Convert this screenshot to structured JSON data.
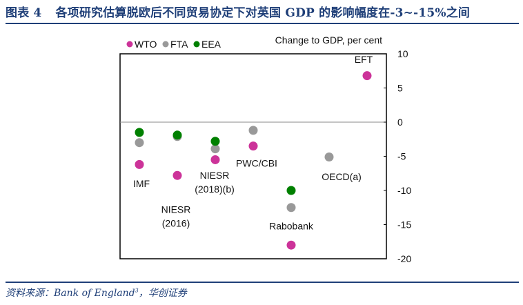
{
  "figure": {
    "label": "图表",
    "number": "4",
    "title": "各项研究估算脱欧后不同贸易协定下对英国 GDP 的影响幅度在-3~-15%之间"
  },
  "source": {
    "prefix": "资料来源：",
    "text": "Bank of England",
    "footnote": "3",
    "suffix": "，华创证券"
  },
  "chart_data": {
    "type": "scatter",
    "title": "",
    "ylabel": "Change to GDP, per cent",
    "xlabel": "",
    "ylim": [
      -20,
      10
    ],
    "yticks": [
      10,
      5,
      0,
      -5,
      -10,
      -15,
      -20
    ],
    "grid": false,
    "reference_line": 0,
    "legend_position": "top-left",
    "colors": {
      "WTO": "#cc3399",
      "FTA": "#999999",
      "EEA": "#008000"
    },
    "series": [
      {
        "name": "WTO",
        "points": [
          {
            "study": "IMF",
            "value": -6.2
          },
          {
            "study": "NIESR (2016)",
            "value": -7.8
          },
          {
            "study": "NIESR (2018)(b)",
            "value": -5.5
          },
          {
            "study": "PWC/CBI",
            "value": -3.5
          },
          {
            "study": "Rabobank",
            "value": -18.0
          },
          {
            "study": "EFT",
            "value": 6.8
          }
        ]
      },
      {
        "name": "FTA",
        "points": [
          {
            "study": "IMF",
            "value": -3.0
          },
          {
            "study": "NIESR (2016)",
            "value": -2.1
          },
          {
            "study": "NIESR (2018)(b)",
            "value": -3.9
          },
          {
            "study": "PWC/CBI",
            "value": -1.2
          },
          {
            "study": "Rabobank",
            "value": -12.5
          },
          {
            "study": "OECD(a)",
            "value": -5.1
          }
        ]
      },
      {
        "name": "EEA",
        "points": [
          {
            "study": "IMF",
            "value": -1.5
          },
          {
            "study": "NIESR (2016)",
            "value": -1.9
          },
          {
            "study": "NIESR (2018)(b)",
            "value": -2.8
          },
          {
            "study": "Rabobank",
            "value": -10.0
          }
        ]
      }
    ],
    "studies": [
      {
        "name": "IMF",
        "lines": [
          "IMF"
        ],
        "label_value": -9.5
      },
      {
        "name": "NIESR (2016)",
        "lines": [
          "NIESR",
          "(2016)"
        ],
        "label_value": -13.3
      },
      {
        "name": "NIESR (2018)(b)",
        "lines": [
          "NIESR",
          "(2018)(b)"
        ],
        "label_value": -8.3
      },
      {
        "name": "PWC/CBI",
        "lines": [
          "PWC/CBI"
        ],
        "label_value": -6.5
      },
      {
        "name": "Rabobank",
        "lines": [
          "Rabobank"
        ],
        "label_value": -15.7
      },
      {
        "name": "OECD(a)",
        "lines": [
          "OECD(a)"
        ],
        "label_value": -8.5
      },
      {
        "name": "EFT",
        "lines": [
          "EFT"
        ],
        "label_value": 8.7
      }
    ]
  }
}
